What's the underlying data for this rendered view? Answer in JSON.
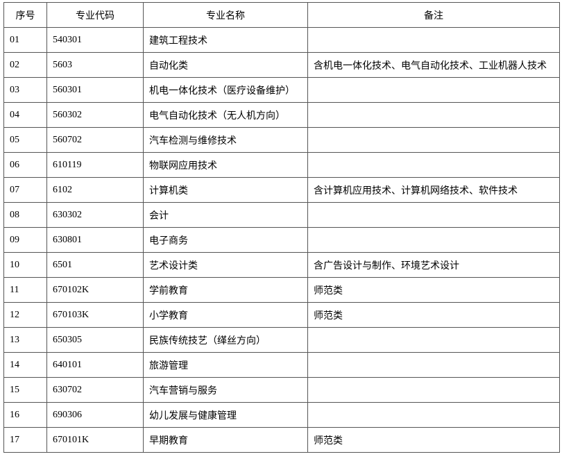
{
  "table": {
    "header": [
      "序号",
      "专业代码",
      "专业名称",
      "备注"
    ],
    "rows": [
      [
        "01",
        "540301",
        "建筑工程技术",
        null
      ],
      [
        "02",
        "5603",
        "自动化类",
        "含机电一体化技术、电气自动化技术、工业机器人技术"
      ],
      [
        "03",
        "560301",
        "机电一体化技术（医疗设备维护）",
        null
      ],
      [
        "04",
        "560302",
        "电气自动化技术（无人机方向）",
        null
      ],
      [
        "05",
        "560702",
        "汽车检测与维修技术",
        null
      ],
      [
        "06",
        "610119",
        "物联网应用技术",
        null
      ],
      [
        "07",
        "6102",
        "计算机类",
        "含计算机应用技术、计算机网络技术、软件技术"
      ],
      [
        "08",
        "630302",
        "会计",
        null
      ],
      [
        "09",
        "630801",
        "电子商务",
        null
      ],
      [
        "10",
        "6501",
        "艺术设计类",
        "含广告设计与制作、环境艺术设计"
      ],
      [
        "11",
        "670102K",
        "学前教育",
        "师范类"
      ],
      [
        "12",
        "670103K",
        "小学教育",
        "师范类"
      ],
      [
        "13",
        "650305",
        "民族传统技艺（缂丝方向）",
        null
      ],
      [
        "14",
        "640101",
        "旅游管理",
        null
      ],
      [
        "15",
        "630702",
        "汽车营销与服务",
        null
      ],
      [
        "16",
        "690306",
        "幼儿发展与健康管理",
        null
      ],
      [
        "17",
        "670101K",
        "早期教育",
        "师范类"
      ]
    ]
  }
}
